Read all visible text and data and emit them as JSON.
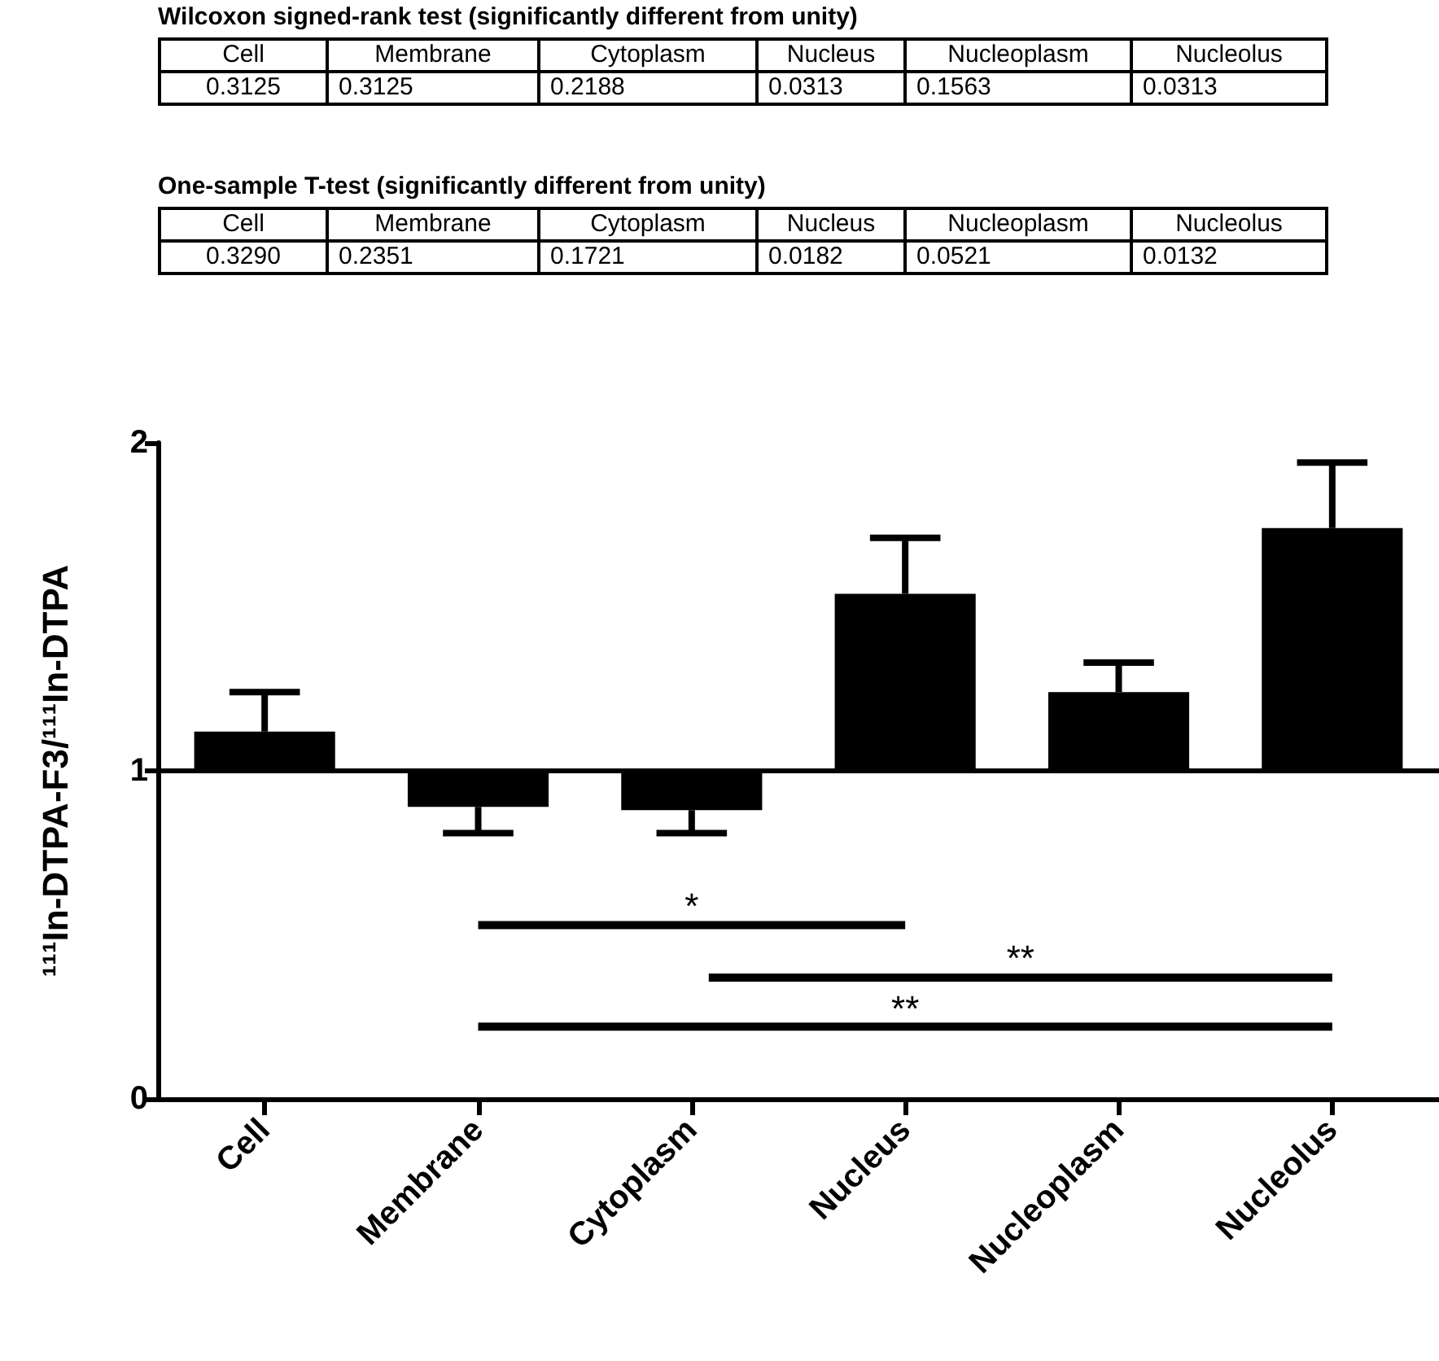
{
  "chart_data": {
    "type": "bar",
    "ylabel": "¹¹¹In-DTPA-F3/¹¹¹In-DTPA",
    "categories": [
      "Cell",
      "Membrane",
      "Cytoplasm",
      "Nucleus",
      "Nucleoplasm",
      "Nucleolus"
    ],
    "base": [
      1,
      1,
      1,
      1,
      1,
      1
    ],
    "values": [
      0.12,
      -0.11,
      -0.12,
      0.54,
      0.24,
      0.74
    ],
    "errors": [
      [
        1.12,
        1.24
      ],
      [
        0.81,
        0.89
      ],
      [
        0.81,
        0.88
      ],
      [
        1.54,
        1.71
      ],
      [
        1.24,
        1.33
      ],
      [
        1.74,
        1.94
      ]
    ],
    "color": "#000000",
    "ylim": [
      0,
      2
    ],
    "yticks": [
      0,
      1,
      2
    ],
    "grid": false,
    "ref_lines": [
      {
        "axis": "y",
        "value": 1,
        "color": "#000000"
      }
    ],
    "annotations": [
      "Wilcoxon signed-rank test (significantly different from unity)",
      "0.3125",
      "0.3125",
      "0.2188",
      "0.0313",
      "0.1563",
      "0.0313",
      "One-sample T-test (significantly different from unity)",
      "0.3290",
      "0.2351",
      "0.1721",
      "0.0182",
      "0.0521",
      "0.0132",
      "*",
      "**",
      "**"
    ]
  }
}
